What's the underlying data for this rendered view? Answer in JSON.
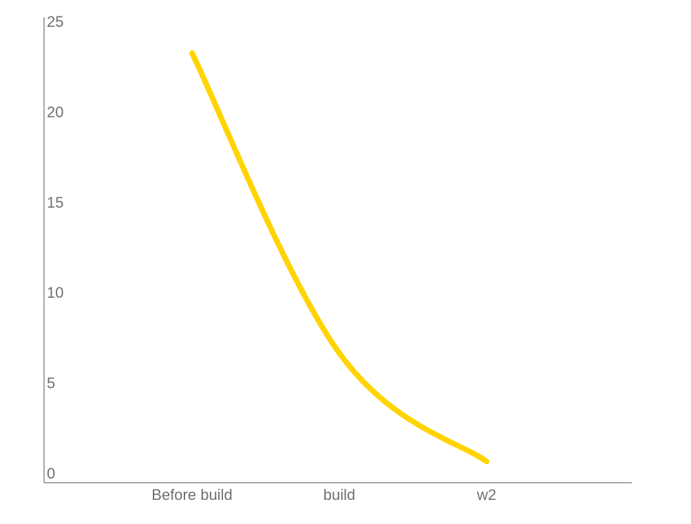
{
  "chart_data": {
    "type": "line",
    "categories": [
      "Before build",
      "build",
      "w2"
    ],
    "series": [
      {
        "values": [
          23.7,
          7.1,
          1.1
        ],
        "color": "#FFD400"
      }
    ],
    "ylim": [
      0,
      25
    ],
    "yticks": [
      0,
      5,
      10,
      15,
      20,
      25
    ],
    "xlabel": "",
    "ylabel": "",
    "grid": false,
    "smooth": true,
    "axis_color": "#8a8a8a",
    "label_color": "#6f6f6f"
  }
}
